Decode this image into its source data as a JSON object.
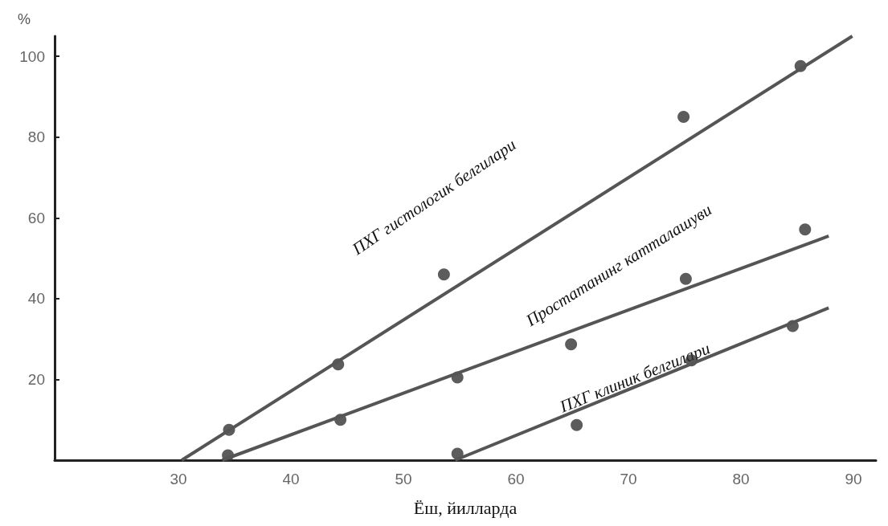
{
  "chart_data": {
    "type": "scatter",
    "xlabel": "Ёш, йилларда",
    "ylabel": "%",
    "xlim": [
      19,
      92
    ],
    "xticks": [
      30,
      40,
      50,
      60,
      70,
      80,
      90
    ],
    "ylim": [
      0,
      105
    ],
    "yticks": [
      20,
      40,
      60,
      80,
      100
    ],
    "grid": false,
    "series": [
      {
        "color": "#333333",
        "marker": "circle",
        "x": [
          34.5,
          44.2,
          53.6,
          74.9,
          85.3
        ],
        "values": [
          7.5,
          23.7,
          46,
          85,
          97.6
        ]
      },
      {
        "color": "#333333",
        "marker": "circle",
        "x": [
          34.4,
          44.4,
          54.8,
          64.9,
          75.1,
          85.7
        ],
        "values": [
          1.2,
          10,
          20.5,
          28.7,
          44.9,
          57.1
        ]
      },
      {
        "color": "#333333",
        "marker": "circle",
        "x": [
          54.8,
          65.4,
          75.6,
          84.6
        ],
        "values": [
          1.6,
          8.7,
          24.7,
          33.2
        ]
      },
      {
        "type": "line",
        "color": "#555555",
        "marker": "none",
        "x": [
          30.3,
          89.9
        ],
        "values": [
          0,
          105
        ]
      },
      {
        "type": "line",
        "color": "#555555",
        "marker": "none",
        "x": [
          33.9,
          87.8
        ],
        "values": [
          0,
          55.5
        ]
      },
      {
        "type": "line",
        "color": "#555555",
        "marker": "none",
        "x": [
          54.6,
          87.8
        ],
        "values": [
          0,
          37.7
        ]
      }
    ],
    "annotations": [
      "ПХГ гистологик белгилари",
      "Простатанинг катталашуви",
      "ПХГ клиник белгилари"
    ]
  }
}
